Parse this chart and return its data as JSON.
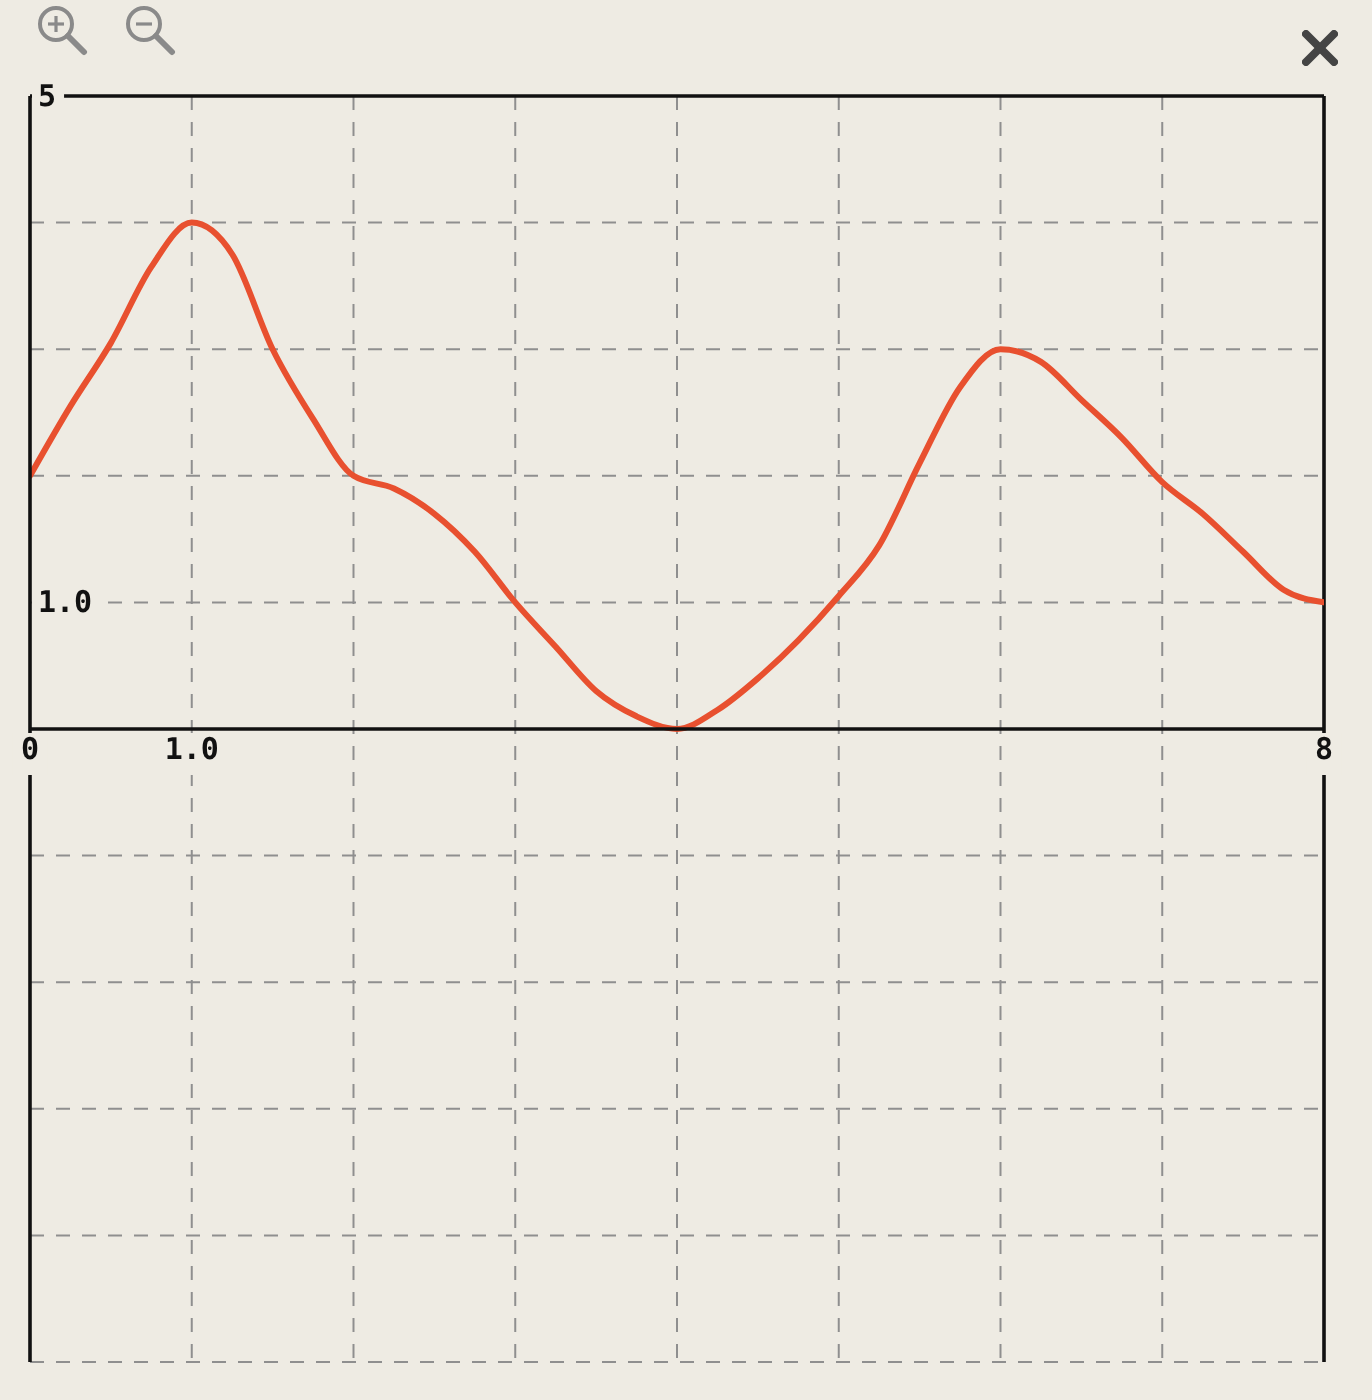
{
  "chart_data": {
    "type": "line",
    "x": [
      0,
      0.25,
      0.5,
      0.75,
      1,
      1.25,
      1.5,
      1.75,
      2,
      2.25,
      2.5,
      2.75,
      3,
      3.25,
      3.5,
      3.75,
      4,
      4.25,
      4.5,
      4.75,
      5,
      5.25,
      5.5,
      5.75,
      6,
      6.25,
      6.5,
      6.75,
      7,
      7.25,
      7.5,
      7.75,
      8
    ],
    "series": [
      {
        "color": "#e8502f",
        "values": [
          2.0,
          2.55,
          3.05,
          3.65,
          4.0,
          3.75,
          3.0,
          2.45,
          2.0,
          1.9,
          1.7,
          1.4,
          1.0,
          0.65,
          0.3,
          0.1,
          0.0,
          0.15,
          0.4,
          0.7,
          1.05,
          1.45,
          2.1,
          2.7,
          3.0,
          2.9,
          2.6,
          2.3,
          1.95,
          1.7,
          1.4,
          1.1,
          1.0
        ]
      }
    ],
    "xlim": [
      0,
      8
    ],
    "ylim": [
      -5,
      5
    ],
    "xticks": [
      0,
      {
        "value": 1,
        "label": "1.0"
      },
      {
        "value": 2,
        "label": null
      },
      {
        "value": 3,
        "label": null
      },
      {
        "value": 4,
        "label": null
      },
      {
        "value": 5,
        "label": null
      },
      {
        "value": 6,
        "label": null
      },
      {
        "value": 7,
        "label": null
      },
      8
    ],
    "yticks": [
      {
        "value": -5,
        "label": null
      },
      {
        "value": -4,
        "label": null
      },
      {
        "value": -3,
        "label": null
      },
      {
        "value": -2,
        "label": null
      },
      {
        "value": -1,
        "label": null
      },
      {
        "value": 0,
        "label": null
      },
      {
        "value": 1,
        "label": "1.0"
      },
      {
        "value": 2,
        "label": null
      },
      {
        "value": 3,
        "label": null
      },
      {
        "value": 4,
        "label": null
      },
      5
    ],
    "grid": true,
    "marker": "none",
    "line_style": "solid"
  }
}
